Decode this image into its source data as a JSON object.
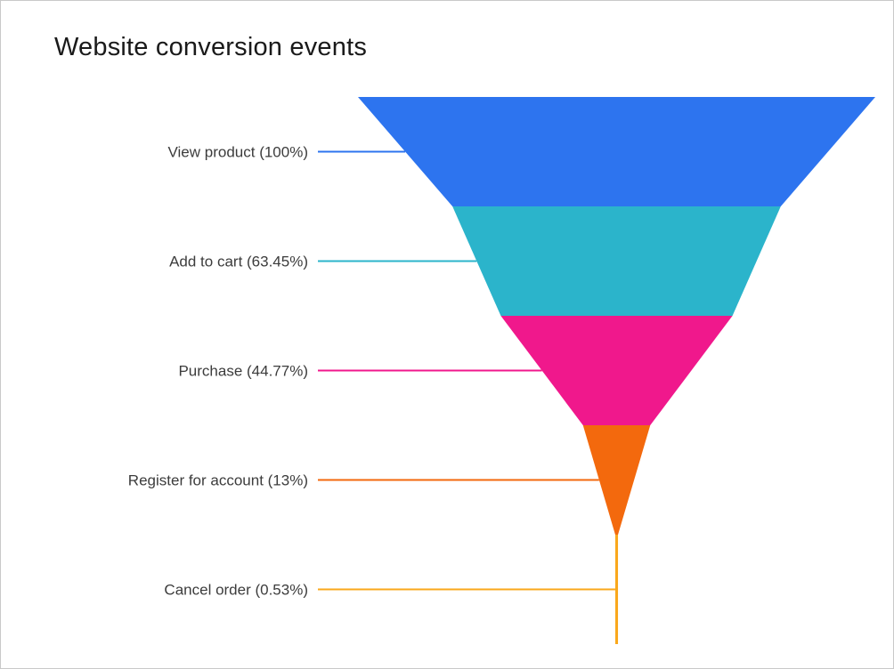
{
  "title": "Website conversion events",
  "chart_data": {
    "type": "funnel",
    "title": "Website conversion events",
    "orientation": "inverted-pyramid",
    "legend_position": "none",
    "grid": false,
    "value_unit": "%",
    "value_range": [
      0,
      100
    ],
    "stages": [
      {
        "name": "View product",
        "label": "View product (100%)",
        "value": 100,
        "color": "#2D74EF"
      },
      {
        "name": "Add to cart",
        "label": "Add to cart (63.45%)",
        "value": 63.45,
        "color": "#2BB4CB"
      },
      {
        "name": "Purchase",
        "label": "Purchase (44.77%)",
        "value": 44.77,
        "color": "#F0188C"
      },
      {
        "name": "Register for account",
        "label": "Register for account (13%)",
        "value": 13,
        "color": "#F3690D"
      },
      {
        "name": "Cancel order",
        "label": "Cancel order (0.53%)",
        "value": 0.53,
        "color": "#FAA81B"
      }
    ]
  }
}
